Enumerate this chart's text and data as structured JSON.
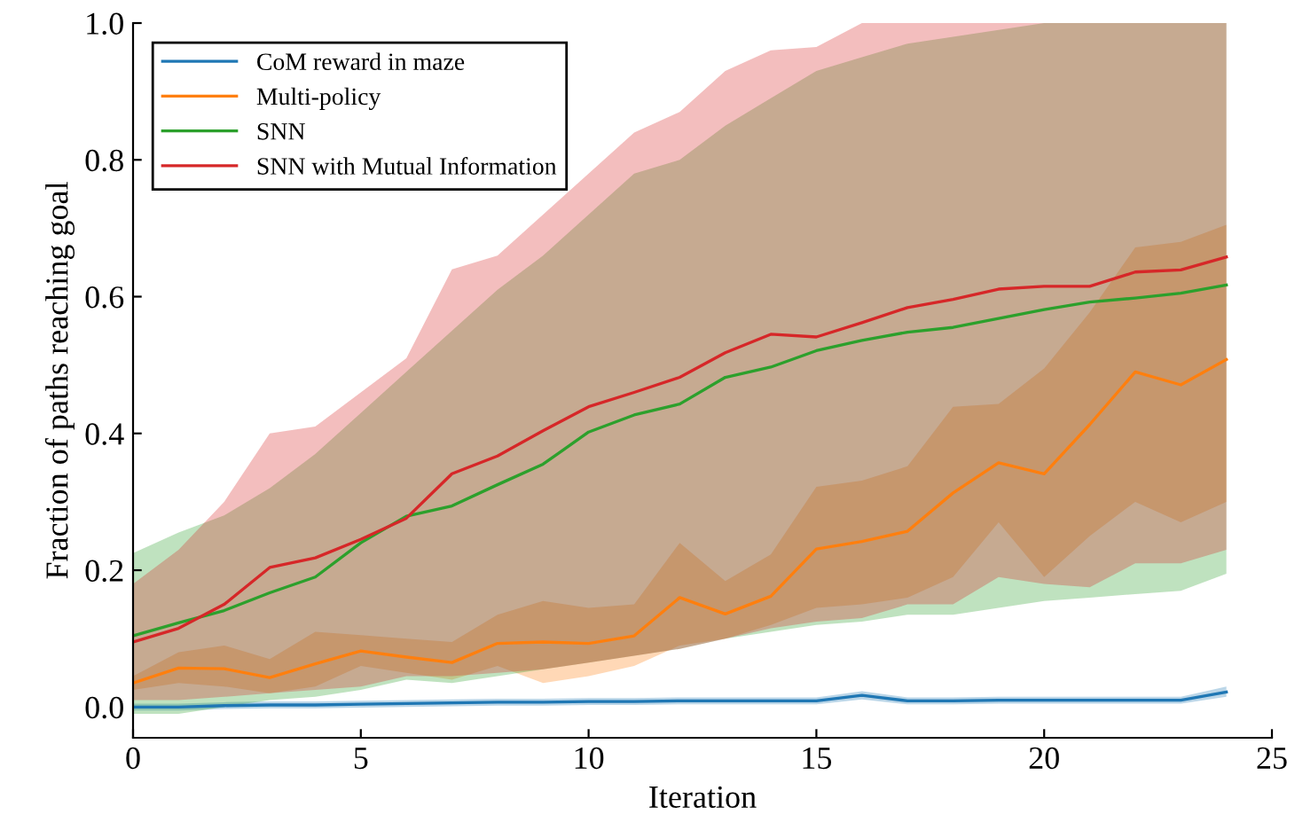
{
  "chart_data": {
    "type": "line",
    "xlabel": "Iteration",
    "ylabel": "Fraction of paths reaching goal",
    "x": [
      0,
      1,
      2,
      3,
      4,
      5,
      6,
      7,
      8,
      9,
      10,
      11,
      12,
      13,
      14,
      15,
      16,
      17,
      18,
      19,
      20,
      21,
      22,
      23,
      24
    ],
    "xlim": [
      0,
      25
    ],
    "xticks": [
      0,
      5,
      10,
      15,
      20,
      25
    ],
    "ylim": [
      -0.045,
      1.0
    ],
    "yticks": [
      {
        "value": 0,
        "label": "0.0"
      },
      0.2,
      0.4,
      0.6,
      0.8,
      {
        "value": 1,
        "label": "1.0"
      }
    ],
    "grid": false,
    "legend": "top left",
    "series": [
      {
        "name": "CoM reward in maze",
        "color": "#1f77b4",
        "values": [
          0,
          0,
          0.002,
          0.003,
          0.003,
          0.004,
          0.005,
          0.006,
          0.007,
          0.007,
          0.008,
          0.008,
          0.009,
          0.009,
          0.009,
          0.009,
          0.017,
          0.009,
          0.009,
          0.01,
          0.01,
          0.01,
          0.01,
          0.01,
          0.022
        ],
        "lower": [
          -0.005,
          -0.005,
          -0.003,
          -0.002,
          -0.002,
          -0.001,
          0,
          0.001,
          0.002,
          0.002,
          0.003,
          0.003,
          0.004,
          0.004,
          0.004,
          0.004,
          0.011,
          0.004,
          0.004,
          0.005,
          0.005,
          0.005,
          0.005,
          0.005,
          0.015
        ],
        "upper": [
          0.005,
          0.005,
          0.007,
          0.008,
          0.008,
          0.009,
          0.01,
          0.011,
          0.012,
          0.012,
          0.013,
          0.013,
          0.014,
          0.014,
          0.014,
          0.014,
          0.023,
          0.014,
          0.014,
          0.015,
          0.015,
          0.015,
          0.015,
          0.015,
          0.03
        ]
      },
      {
        "name": "Multi-policy",
        "color": "#ff7f0e",
        "values": [
          0.035,
          0.057,
          0.056,
          0.043,
          0.063,
          0.082,
          0.073,
          0.065,
          0.093,
          0.095,
          0.093,
          0.104,
          0.16,
          0.136,
          0.162,
          0.231,
          0.242,
          0.257,
          0.313,
          0.357,
          0.341,
          0.413,
          0.49,
          0.471,
          0.508
        ],
        "lower": [
          0.025,
          0.035,
          0.03,
          0.02,
          0.03,
          0.06,
          0.05,
          0.04,
          0.06,
          0.035,
          0.045,
          0.06,
          0.09,
          0.1,
          0.12,
          0.145,
          0.15,
          0.16,
          0.19,
          0.27,
          0.19,
          0.25,
          0.3,
          0.27,
          0.3
        ],
        "upper": [
          0.045,
          0.08,
          0.09,
          0.07,
          0.11,
          0.105,
          0.1,
          0.095,
          0.135,
          0.155,
          0.145,
          0.15,
          0.24,
          0.184,
          0.223,
          0.322,
          0.331,
          0.352,
          0.439,
          0.443,
          0.495,
          0.577,
          0.672,
          0.68,
          0.705
        ]
      },
      {
        "name": "SNN",
        "color": "#2ca02c",
        "values": [
          0.104,
          0.123,
          0.141,
          0.167,
          0.19,
          0.24,
          0.279,
          0.294,
          0.325,
          0.355,
          0.402,
          0.427,
          0.443,
          0.482,
          0.497,
          0.521,
          0.536,
          0.548,
          0.555,
          0.568,
          0.581,
          0.592,
          0.598,
          0.605,
          0.617
        ],
        "lower": [
          -0.01,
          -0.01,
          0,
          0.01,
          0.015,
          0.025,
          0.04,
          0.035,
          0.045,
          0.055,
          0.065,
          0.075,
          0.085,
          0.1,
          0.11,
          0.12,
          0.125,
          0.135,
          0.135,
          0.145,
          0.155,
          0.16,
          0.165,
          0.17,
          0.195
        ],
        "upper": [
          0.225,
          0.255,
          0.28,
          0.32,
          0.37,
          0.43,
          0.49,
          0.55,
          0.61,
          0.66,
          0.72,
          0.78,
          0.8,
          0.85,
          0.89,
          0.93,
          0.95,
          0.97,
          0.98,
          0.99,
          1.0,
          1.0,
          1.0,
          1.0,
          1.0
        ]
      },
      {
        "name": "SNN with Mutual Information",
        "color": "#d62728",
        "values": [
          0.095,
          0.115,
          0.15,
          0.204,
          0.218,
          0.245,
          0.276,
          0.341,
          0.367,
          0.404,
          0.439,
          0.46,
          0.482,
          0.518,
          0.545,
          0.541,
          0.562,
          0.584,
          0.596,
          0.611,
          0.615,
          0.615,
          0.636,
          0.639,
          0.658
        ],
        "lower": [
          0.01,
          0.01,
          0.015,
          0.02,
          0.025,
          0.03,
          0.045,
          0.045,
          0.05,
          0.055,
          0.065,
          0.075,
          0.085,
          0.1,
          0.115,
          0.125,
          0.13,
          0.15,
          0.15,
          0.19,
          0.18,
          0.175,
          0.21,
          0.21,
          0.23
        ],
        "upper": [
          0.18,
          0.23,
          0.3,
          0.4,
          0.41,
          0.46,
          0.51,
          0.64,
          0.66,
          0.72,
          0.78,
          0.84,
          0.87,
          0.93,
          0.96,
          0.965,
          1.0,
          1.0,
          1.0,
          1.0,
          1.0,
          1.0,
          1.0,
          1.0,
          1.0
        ]
      }
    ]
  }
}
